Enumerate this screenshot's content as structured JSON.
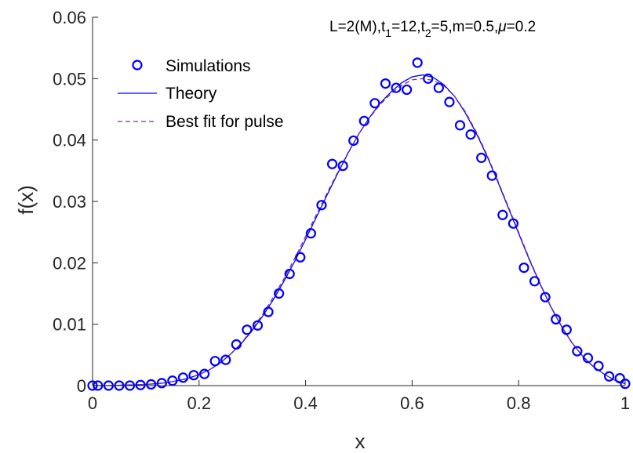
{
  "chart_data": {
    "type": "line",
    "title": "",
    "xlabel": "x",
    "ylabel": "f(x)",
    "xlim": [
      0,
      1
    ],
    "ylim": [
      0,
      0.06
    ],
    "x_ticks": [
      0,
      0.2,
      0.4,
      0.6,
      0.8,
      1
    ],
    "x_tick_labels": [
      "0",
      "0.2",
      "0.4",
      "0.6",
      "0.8",
      "1"
    ],
    "y_ticks": [
      0,
      0.01,
      0.02,
      0.03,
      0.04,
      0.05,
      0.06
    ],
    "y_tick_labels": [
      "0",
      "0.01",
      "0.02",
      "0.03",
      "0.04",
      "0.05",
      "0.06"
    ],
    "grid": false,
    "legend_position": "top-left",
    "annotation": {
      "parts": [
        "L=2(M),t",
        "1",
        "=12,t",
        "2",
        "=5,m=0.5,",
        "μ",
        "=0.2"
      ]
    },
    "series": [
      {
        "name": "Simulations",
        "style": "markers",
        "marker": "circle",
        "color": "#0000ff",
        "x": [
          0.0,
          0.01,
          0.03,
          0.05,
          0.07,
          0.09,
          0.11,
          0.13,
          0.15,
          0.17,
          0.19,
          0.21,
          0.23,
          0.25,
          0.27,
          0.29,
          0.31,
          0.33,
          0.35,
          0.37,
          0.39,
          0.41,
          0.43,
          0.45,
          0.47,
          0.49,
          0.51,
          0.53,
          0.55,
          0.57,
          0.59,
          0.61,
          0.63,
          0.65,
          0.67,
          0.69,
          0.71,
          0.73,
          0.75,
          0.77,
          0.79,
          0.81,
          0.83,
          0.85,
          0.87,
          0.89,
          0.91,
          0.93,
          0.95,
          0.97,
          0.99,
          1.0
        ],
        "y": [
          0.0,
          0.0,
          0.0,
          0.0,
          0.0,
          0.0001,
          0.0002,
          0.0004,
          0.0008,
          0.0013,
          0.0017,
          0.0019,
          0.004,
          0.0042,
          0.0067,
          0.0091,
          0.0098,
          0.012,
          0.015,
          0.0182,
          0.0209,
          0.0248,
          0.0294,
          0.0361,
          0.0358,
          0.0399,
          0.0431,
          0.046,
          0.0492,
          0.0485,
          0.0482,
          0.0526,
          0.05,
          0.0485,
          0.0462,
          0.0424,
          0.0409,
          0.0371,
          0.0342,
          0.0278,
          0.0264,
          0.0192,
          0.017,
          0.0144,
          0.0108,
          0.0091,
          0.0056,
          0.0045,
          0.0032,
          0.0015,
          0.0012,
          0.0003
        ]
      },
      {
        "name": "Theory",
        "style": "solid",
        "color": "#0000ff",
        "x": [
          0.0,
          0.02,
          0.04,
          0.06,
          0.08,
          0.1,
          0.12,
          0.14,
          0.16,
          0.18,
          0.2,
          0.22,
          0.24,
          0.26,
          0.28,
          0.3,
          0.32,
          0.34,
          0.36,
          0.38,
          0.4,
          0.42,
          0.44,
          0.46,
          0.48,
          0.5,
          0.52,
          0.54,
          0.56,
          0.58,
          0.6,
          0.62,
          0.64,
          0.66,
          0.68,
          0.7,
          0.72,
          0.74,
          0.76,
          0.78,
          0.8,
          0.82,
          0.84,
          0.86,
          0.88,
          0.9,
          0.92,
          0.94,
          0.96,
          0.98,
          1.0
        ],
        "y": [
          0.0,
          0.0,
          0.0,
          0.0001,
          0.0001,
          0.0002,
          0.0003,
          0.0005,
          0.0008,
          0.0012,
          0.0018,
          0.0026,
          0.0037,
          0.0052,
          0.0069,
          0.009,
          0.0114,
          0.0141,
          0.0171,
          0.0203,
          0.0238,
          0.0274,
          0.031,
          0.0345,
          0.0379,
          0.041,
          0.0437,
          0.046,
          0.0478,
          0.0493,
          0.0503,
          0.0506,
          0.0502,
          0.049,
          0.0471,
          0.0444,
          0.0412,
          0.0375,
          0.0334,
          0.0291,
          0.0248,
          0.0205,
          0.0166,
          0.0129,
          0.0097,
          0.007,
          0.0048,
          0.0031,
          0.0019,
          0.0009,
          0.0003
        ]
      },
      {
        "name": "Best fit for pulse",
        "style": "dashed",
        "color": "#7e2f8e",
        "x": [
          0.0,
          0.02,
          0.04,
          0.06,
          0.08,
          0.1,
          0.12,
          0.14,
          0.16,
          0.18,
          0.2,
          0.22,
          0.24,
          0.26,
          0.28,
          0.3,
          0.32,
          0.34,
          0.36,
          0.38,
          0.4,
          0.42,
          0.44,
          0.46,
          0.48,
          0.5,
          0.52,
          0.54,
          0.56,
          0.58,
          0.6,
          0.62,
          0.64,
          0.66,
          0.68,
          0.7,
          0.72,
          0.74,
          0.76,
          0.78,
          0.8,
          0.82,
          0.84,
          0.86,
          0.88,
          0.9,
          0.92,
          0.94,
          0.96,
          0.98,
          1.0
        ],
        "y": [
          0.0,
          0.0,
          0.0,
          0.0001,
          0.0001,
          0.0002,
          0.0003,
          0.0005,
          0.0008,
          0.0012,
          0.0018,
          0.0026,
          0.0037,
          0.0052,
          0.007,
          0.0092,
          0.0117,
          0.0145,
          0.0175,
          0.0208,
          0.0243,
          0.0278,
          0.0313,
          0.0347,
          0.038,
          0.041,
          0.0436,
          0.0458,
          0.0475,
          0.0489,
          0.0498,
          0.05,
          0.0497,
          0.0488,
          0.0471,
          0.0446,
          0.0414,
          0.0377,
          0.0336,
          0.0293,
          0.025,
          0.0207,
          0.0167,
          0.013,
          0.0098,
          0.007,
          0.0048,
          0.0031,
          0.0019,
          0.0009,
          0.0003
        ]
      }
    ]
  }
}
